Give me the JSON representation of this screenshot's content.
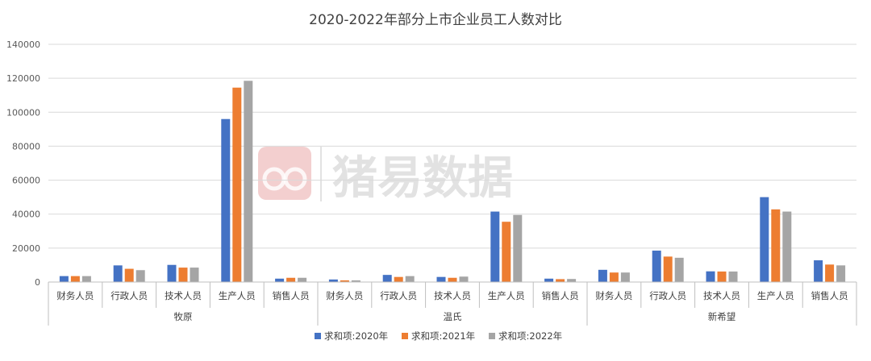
{
  "chart_data": {
    "type": "bar",
    "title": "2020-2022年部分上市企业员工人数对比",
    "xlabel": "",
    "ylabel": "",
    "ylim": [
      0,
      140000
    ],
    "yticks": [
      "0",
      "20000",
      "40000",
      "60000",
      "80000",
      "100000",
      "120000",
      "140000"
    ],
    "grid": true,
    "legend_position": "bottom",
    "groups": [
      {
        "name": "牧原",
        "categories": [
          "财务人员",
          "行政人员",
          "技术人员",
          "生产人员",
          "销售人员"
        ]
      },
      {
        "name": "温氏",
        "categories": [
          "财务人员",
          "行政人员",
          "技术人员",
          "生产人员",
          "销售人员"
        ]
      },
      {
        "name": "新希望",
        "categories": [
          "财务人员",
          "行政人员",
          "技术人员",
          "生产人员",
          "销售人员"
        ]
      }
    ],
    "series": [
      {
        "name": "求和项:2020年",
        "color": "#4472c4",
        "values": [
          3500,
          9800,
          10100,
          96000,
          2000,
          1500,
          4200,
          3000,
          41500,
          2000,
          7200,
          18500,
          6300,
          50000,
          12800
        ]
      },
      {
        "name": "求和项:2021年",
        "color": "#ed7d31",
        "values": [
          3500,
          7800,
          8500,
          114500,
          2500,
          1000,
          3000,
          2500,
          35500,
          1700,
          5600,
          15000,
          6200,
          42800,
          10300
        ]
      },
      {
        "name": "求和项:2022年",
        "color": "#a5a5a5",
        "values": [
          3500,
          7000,
          8500,
          118500,
          2500,
          1000,
          3500,
          3200,
          39500,
          1800,
          5600,
          14300,
          6200,
          41500,
          9800
        ]
      }
    ]
  },
  "watermark": {
    "text": "猪易数据",
    "logo_color": "#e8a0a0"
  }
}
